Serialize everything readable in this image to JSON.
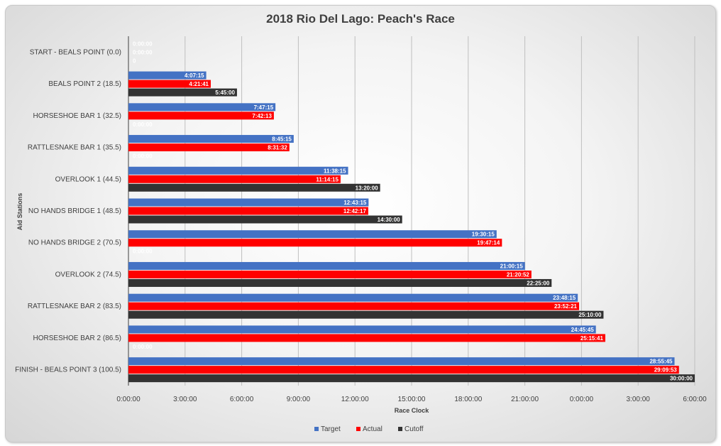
{
  "chart_data": {
    "type": "bar",
    "orientation": "horizontal",
    "title": "2018 Rio Del Lago: Peach's Race",
    "xlabel": "Race Clock",
    "ylabel": "Aid Stations",
    "xlim_hours": [
      0,
      30
    ],
    "x_ticks": [
      "0:00:00",
      "3:00:00",
      "6:00:00",
      "9:00:00",
      "12:00:00",
      "15:00:00",
      "18:00:00",
      "21:00:00",
      "0:00:00",
      "3:00:00",
      "6:00:00"
    ],
    "grid": true,
    "legend_position": "bottom",
    "categories": [
      "START - BEALS POINT (0.0)",
      "BEALS POINT 2 (18.5)",
      "HORSESHOE BAR 1 (32.5)",
      "RATTLESNAKE BAR 1 (35.5)",
      "OVERLOOK 1 (44.5)",
      "NO HANDS BRIDGE 1 (48.5)",
      "NO HANDS BRIDGE 2 (70.5)",
      "OVERLOOK 2 (74.5)",
      "RATTLESNAKE BAR 2 (83.5)",
      "HORSESHOE BAR 2 (86.5)",
      "FINISH - BEALS POINT 3 (100.5)"
    ],
    "series": [
      {
        "name": "Target",
        "color": "#4472C4",
        "values_hours": [
          0,
          4.1208,
          7.7875,
          8.7542,
          11.6375,
          12.7208,
          19.5042,
          21.0042,
          23.8042,
          24.7625,
          28.9292
        ],
        "labels": [
          "0:00:00",
          "4:07:15",
          "7:47:15",
          "8:45:15",
          "11:38:15",
          "12:43:15",
          "19:30:15",
          "21:00:15",
          "23:48:15",
          "24:45:45",
          "28:55:45"
        ]
      },
      {
        "name": "Actual",
        "color": "#FF0000",
        "values_hours": [
          0,
          4.3614,
          7.7036,
          8.5256,
          11.2375,
          12.7047,
          19.7872,
          21.3478,
          23.8725,
          25.2614,
          29.1647
        ],
        "labels": [
          "0:00:00",
          "4:21:41",
          "7:42:13",
          "8:31:32",
          "11:14:15",
          "12:42:17",
          "19:47:14",
          "21:20:52",
          "23:52:21",
          "25:15:41",
          "29:09:53"
        ]
      },
      {
        "name": "Cutoff",
        "color": "#333333",
        "values_hours": [
          0,
          5.75,
          0,
          0,
          13.3333,
          14.5,
          0,
          22.4167,
          25.1667,
          0,
          30
        ],
        "labels": [
          "0",
          "5:45:00",
          "0:00:00",
          "0:00:00",
          "13:20:00",
          "14:30:00",
          "0:00:00",
          "22:25:00",
          "25:10:00",
          "0:00:00",
          "30:00:00"
        ]
      }
    ]
  }
}
